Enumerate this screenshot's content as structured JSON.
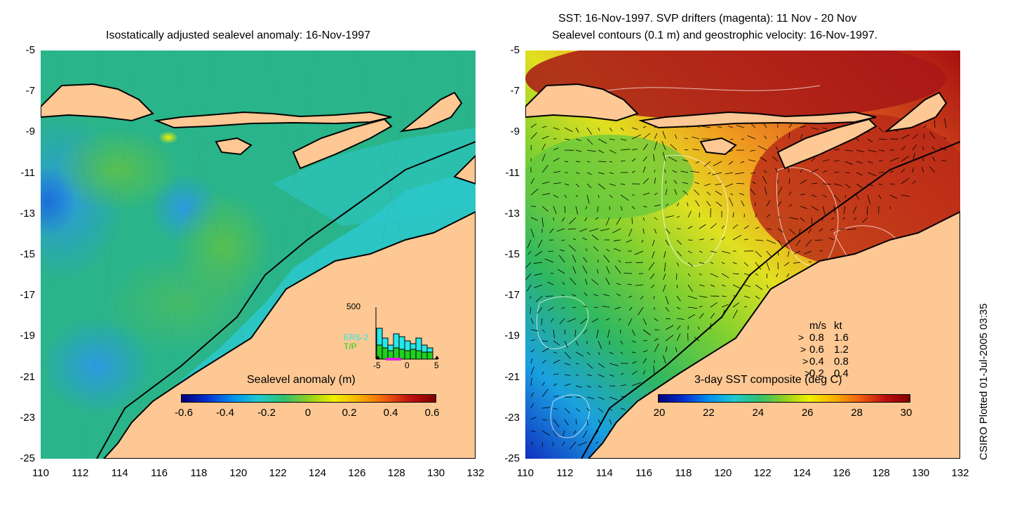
{
  "left_panel": {
    "title": "Isostatically adjusted sealevel anomaly: 16-Nov-1997",
    "colorbar": {
      "title": "Sealevel anomaly (m)",
      "ticks": [
        "-0.6",
        "-0.4",
        "-0.2",
        "0",
        "0.2",
        "0.4",
        "0.6"
      ]
    },
    "inset": {
      "ymax": "500",
      "label_ers": "ERS-2",
      "label_tp": "T/P",
      "xticks": [
        "-5",
        "0",
        "5"
      ]
    }
  },
  "right_panel": {
    "title_line1": "SST: 16-Nov-1997. SVP drifters (magenta): 11 Nov - 20 Nov",
    "title_line2": "Sealevel contours (0.1 m) and geostrophic velocity: 16-Nov-1997.",
    "colorbar": {
      "title": "3-day SST composite (deg C)",
      "ticks": [
        "20",
        "22",
        "24",
        "26",
        "28",
        "30"
      ]
    },
    "velocity_legend": {
      "header_ms": "m/s",
      "header_kt": "kt",
      "rows": [
        {
          "ms": "0.8",
          "kt": "1.6"
        },
        {
          "ms": "0.6",
          "kt": "1.2"
        },
        {
          "ms": "0.4",
          "kt": "0.8"
        },
        {
          "ms": "0.2",
          "kt": "0.4"
        }
      ]
    }
  },
  "axes": {
    "y_ticks": [
      "-5",
      "-7",
      "-9",
      "-11",
      "-13",
      "-15",
      "-17",
      "-19",
      "-21",
      "-23",
      "-25"
    ],
    "x_ticks": [
      "110",
      "112",
      "114",
      "116",
      "118",
      "120",
      "122",
      "124",
      "126",
      "128",
      "130",
      "132"
    ]
  },
  "footer": {
    "plotted": "CSIRO Plotted 01-Jul-2005 03:35"
  },
  "colors": {
    "land": "#fdc894",
    "sla_ocean": "#1fb87a",
    "sst_warm": "#c0301a"
  }
}
